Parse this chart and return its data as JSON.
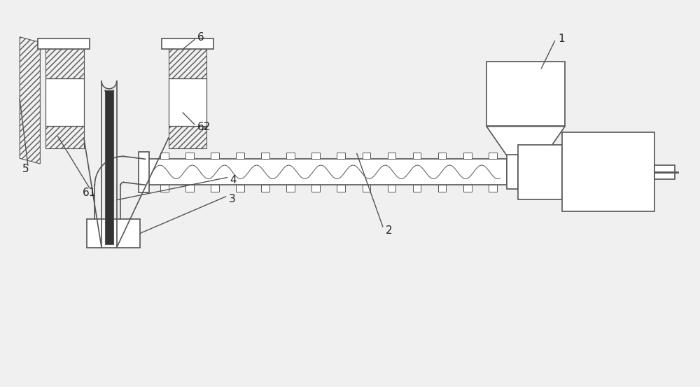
{
  "bg_color": "#f0f0f0",
  "line_color": "#555555",
  "lw": 1.2
}
